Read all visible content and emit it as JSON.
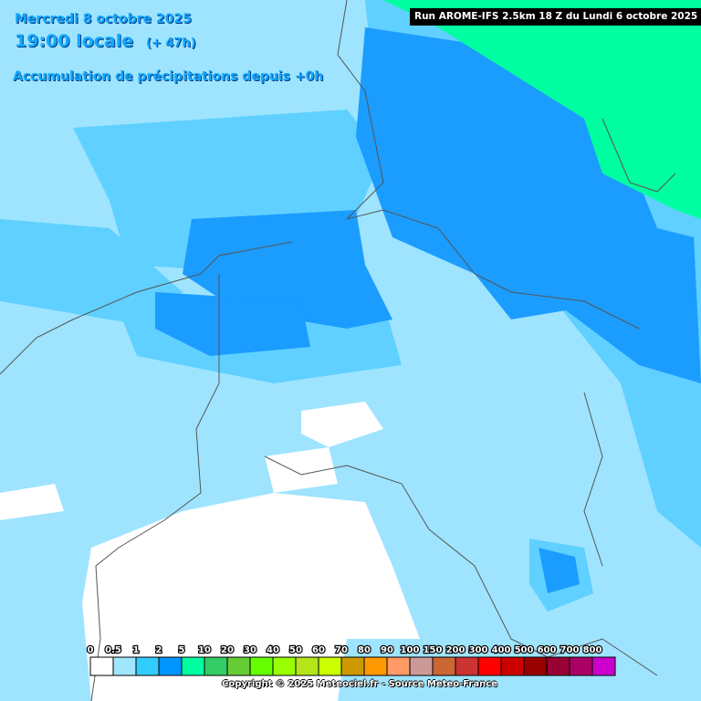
{
  "header": {
    "date": "Mercredi 8 octobre 2025",
    "time": "19:00 locale",
    "offset": "(+ 47h)",
    "subtitle": "Accumulation de précipitations depuis +0h",
    "run": "Run AROME-IFS 2.5km 18 Z du Lundi 6 octobre 2025"
  },
  "legend": {
    "labels": [
      "0",
      "0.5",
      "1",
      "2",
      "5",
      "10",
      "20",
      "30",
      "40",
      "50",
      "60",
      "70",
      "80",
      "90",
      "100",
      "150",
      "200",
      "300",
      "400",
      "500",
      "600",
      "700",
      "800"
    ],
    "colors": [
      "#ffffff",
      "#a0e6ff",
      "#33ccff",
      "#0096ff",
      "#00ffa0",
      "#33cc66",
      "#66cc33",
      "#66ff00",
      "#99ff00",
      "#b3e61a",
      "#ccff00",
      "#cc9900",
      "#ff9900",
      "#ff9966",
      "#cc9999",
      "#cc6633",
      "#cc3333",
      "#ff0000",
      "#cc0000",
      "#990000",
      "#990033",
      "#aa0066",
      "#cc00cc"
    ]
  },
  "footer": {
    "copyright": "Copyright © 2025 Meteociel.fr - Source Meteo-France"
  }
}
